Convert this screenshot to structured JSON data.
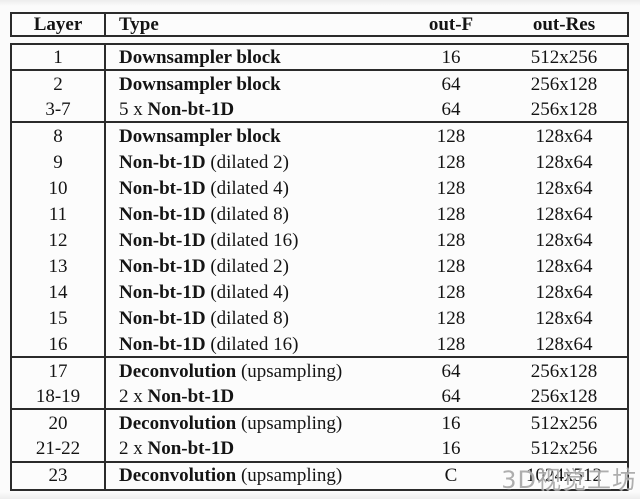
{
  "page": {
    "background": "#fbfbfb",
    "border_color": "#2b2b2b",
    "text_color": "#141414"
  },
  "header": {
    "columns": [
      "Layer",
      "Type",
      "out-F",
      "out-Res"
    ]
  },
  "table": {
    "rows": [
      {
        "layer": "1",
        "type_prefix": "",
        "type_bold": "Downsampler block",
        "type_suffix": "",
        "out_f": "16",
        "out_res": "512x256"
      },
      {
        "layer": "2",
        "type_prefix": "",
        "type_bold": "Downsampler block",
        "type_suffix": "",
        "out_f": "64",
        "out_res": "256x128"
      },
      {
        "layer": "3-7",
        "type_prefix": "5 x ",
        "type_bold": "Non-bt-1D",
        "type_suffix": "",
        "out_f": "64",
        "out_res": "256x128"
      },
      {
        "layer": "8",
        "type_prefix": "",
        "type_bold": "Downsampler block",
        "type_suffix": "",
        "out_f": "128",
        "out_res": "128x64"
      },
      {
        "layer": "9",
        "type_prefix": "",
        "type_bold": "Non-bt-1D",
        "type_suffix": " (dilated 2)",
        "out_f": "128",
        "out_res": "128x64"
      },
      {
        "layer": "10",
        "type_prefix": "",
        "type_bold": "Non-bt-1D",
        "type_suffix": " (dilated 4)",
        "out_f": "128",
        "out_res": "128x64"
      },
      {
        "layer": "11",
        "type_prefix": "",
        "type_bold": "Non-bt-1D",
        "type_suffix": " (dilated 8)",
        "out_f": "128",
        "out_res": "128x64"
      },
      {
        "layer": "12",
        "type_prefix": "",
        "type_bold": "Non-bt-1D",
        "type_suffix": " (dilated 16)",
        "out_f": "128",
        "out_res": "128x64"
      },
      {
        "layer": "13",
        "type_prefix": "",
        "type_bold": "Non-bt-1D",
        "type_suffix": " (dilated 2)",
        "out_f": "128",
        "out_res": "128x64"
      },
      {
        "layer": "14",
        "type_prefix": "",
        "type_bold": "Non-bt-1D",
        "type_suffix": " (dilated 4)",
        "out_f": "128",
        "out_res": "128x64"
      },
      {
        "layer": "15",
        "type_prefix": "",
        "type_bold": "Non-bt-1D",
        "type_suffix": " (dilated 8)",
        "out_f": "128",
        "out_res": "128x64"
      },
      {
        "layer": "16",
        "type_prefix": "",
        "type_bold": "Non-bt-1D",
        "type_suffix": " (dilated 16)",
        "out_f": "128",
        "out_res": "128x64"
      },
      {
        "layer": "17",
        "type_prefix": "",
        "type_bold": "Deconvolution",
        "type_suffix": " (upsampling)",
        "out_f": "64",
        "out_res": "256x128"
      },
      {
        "layer": "18-19",
        "type_prefix": "2 x ",
        "type_bold": "Non-bt-1D",
        "type_suffix": "",
        "out_f": "64",
        "out_res": "256x128"
      },
      {
        "layer": "20",
        "type_prefix": "",
        "type_bold": "Deconvolution",
        "type_suffix": " (upsampling)",
        "out_f": "16",
        "out_res": "512x256"
      },
      {
        "layer": "21-22",
        "type_prefix": "2 x ",
        "type_bold": "Non-bt-1D",
        "type_suffix": "",
        "out_f": "16",
        "out_res": "512x256"
      },
      {
        "layer": "23",
        "type_prefix": "",
        "type_bold": "Deconvolution",
        "type_suffix": " (upsampling)",
        "out_f": "C",
        "out_res": "1024x512"
      }
    ]
  },
  "watermark": {
    "text": "3D视觉工坊",
    "color": "#7d7d7d"
  }
}
